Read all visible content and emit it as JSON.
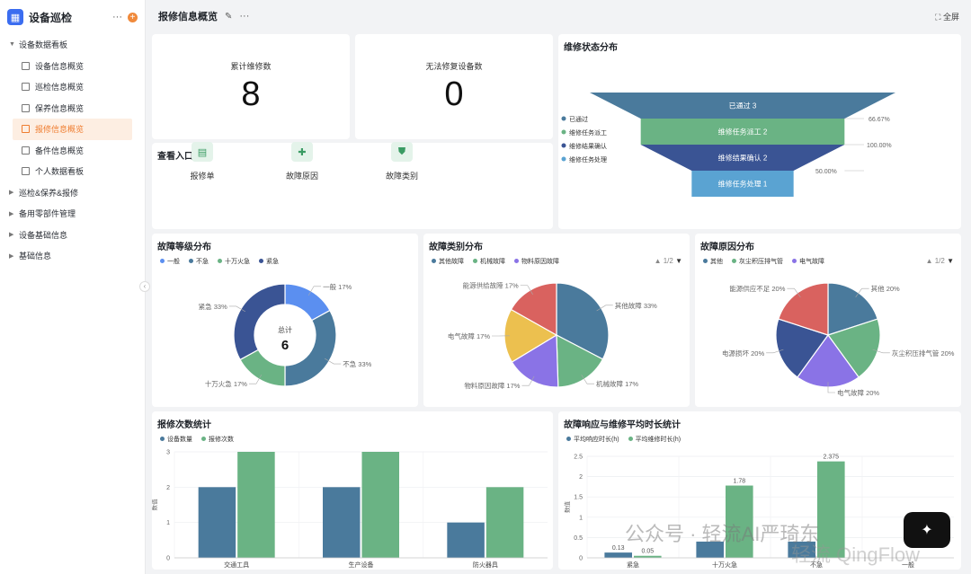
{
  "app": {
    "name": "设备巡检",
    "logo_icon": "app-logo-icon"
  },
  "sidebar": {
    "items": [
      {
        "label": "设备数据看板",
        "level": 0,
        "expanded": true
      },
      {
        "label": "设备信息概览",
        "level": 1
      },
      {
        "label": "巡检信息概览",
        "level": 1
      },
      {
        "label": "保养信息概览",
        "level": 1
      },
      {
        "label": "报修信息概览",
        "level": 1,
        "active": true
      },
      {
        "label": "备件信息概览",
        "level": 1
      },
      {
        "label": "个人数据看板",
        "level": 1
      },
      {
        "label": "巡检&保养&报修",
        "level": 0
      },
      {
        "label": "备用零部件管理",
        "level": 0
      },
      {
        "label": "设备基础信息",
        "level": 0
      },
      {
        "label": "基础信息",
        "level": 0
      }
    ]
  },
  "header": {
    "title": "报修信息概览",
    "fullscreen_label": "全屏"
  },
  "kpis": [
    {
      "label": "累计维修数",
      "value": "8"
    },
    {
      "label": "无法修复设备数",
      "value": "0"
    }
  ],
  "entries": {
    "title": "查看入口",
    "items": [
      {
        "label": "报修单",
        "icon": "form-icon"
      },
      {
        "label": "故障原因",
        "icon": "puzzle-icon"
      },
      {
        "label": "故障类别",
        "icon": "shield-icon"
      }
    ]
  },
  "colors": {
    "blue_light": "#5b8ff0",
    "blue_steel": "#4a7a9c",
    "green": "#6ab384",
    "navy": "#3a5494",
    "red": "#d9625f",
    "yellow": "#ecc04f",
    "purple": "#8a73e6",
    "sky": "#5aa3d2"
  },
  "chart_data": [
    {
      "type": "funnel",
      "title": "维修状态分布",
      "legend": [
        "已通过",
        "维修任务派工",
        "维修结果确认",
        "维修任务处理"
      ],
      "stages": [
        {
          "name": "已通过",
          "value": 3,
          "label": "已通过 3",
          "rate": "66.67%"
        },
        {
          "name": "维修任务派工",
          "value": 2,
          "label": "维修任务派工 2",
          "rate": "100.00%"
        },
        {
          "name": "维修结果确认",
          "value": 2,
          "label": "维修结果确认 2",
          "rate": "50.00%"
        },
        {
          "name": "维修任务处理",
          "value": 1,
          "label": "维修任务处理 1"
        }
      ]
    },
    {
      "type": "pie",
      "title": "故障等级分布",
      "legend": [
        "一般",
        "不急",
        "十万火急",
        "紧急"
      ],
      "center_label": "总计",
      "center_value": "6",
      "slices": [
        {
          "name": "一般",
          "percent": 17,
          "label": "一般 17%"
        },
        {
          "name": "不急",
          "percent": 33,
          "label": "不急 33%"
        },
        {
          "name": "十万火急",
          "percent": 17,
          "label": "十万火急 17%"
        },
        {
          "name": "紧急",
          "percent": 33,
          "label": "紧急 33%"
        }
      ]
    },
    {
      "type": "pie",
      "title": "故障类别分布",
      "legend": [
        "其他故障",
        "机械故障",
        "物料原因故障"
      ],
      "pager": "1/2",
      "slices": [
        {
          "name": "其他故障",
          "percent": 33,
          "label": "其他故障 33%"
        },
        {
          "name": "机械故障",
          "percent": 17,
          "label": "机械故障 17%"
        },
        {
          "name": "物料原因故障",
          "percent": 17,
          "label": "物料原因故障 17%"
        },
        {
          "name": "电气故障",
          "percent": 17,
          "label": "电气故障 17%"
        },
        {
          "name": "能源供给故障",
          "percent": 17,
          "label": "能源供给故障 17%"
        }
      ]
    },
    {
      "type": "pie",
      "title": "故障原因分布",
      "legend": [
        "其他",
        "灰尘积压排气管",
        "电气故障"
      ],
      "pager": "1/2",
      "slices": [
        {
          "name": "其他",
          "percent": 20,
          "label": "其他 20%"
        },
        {
          "name": "灰尘积压排气管",
          "percent": 20,
          "label": "灰尘积压排气管 20%"
        },
        {
          "name": "电气故障",
          "percent": 20,
          "label": "电气故障 20%"
        },
        {
          "name": "电源损坏",
          "percent": 20,
          "label": "电源损坏 20%"
        },
        {
          "name": "能源供应不足",
          "percent": 20,
          "label": "能源供应不足 20%"
        }
      ]
    },
    {
      "type": "bar",
      "title": "报修次数统计",
      "ylabel": "数值",
      "ylim": [
        0,
        3
      ],
      "yticks": [
        0,
        1,
        2,
        3
      ],
      "categories": [
        "交通工具",
        "生产设备",
        "防火器具"
      ],
      "series": [
        {
          "name": "设备数量",
          "values": [
            2,
            2,
            1
          ]
        },
        {
          "name": "报修次数",
          "values": [
            3,
            3,
            2
          ]
        }
      ]
    },
    {
      "type": "bar",
      "title": "故障响应与维修平均时长统计",
      "ylabel": "数值",
      "ylim": [
        0,
        2.5
      ],
      "yticks": [
        "0",
        "0.5",
        "1",
        "1.5",
        "2",
        "2.5"
      ],
      "categories": [
        "紧急",
        "十万火急",
        "不急",
        "一般"
      ],
      "series": [
        {
          "name": "平均响应时长(h)",
          "values": [
            0.13,
            0.4,
            0.4,
            null
          ],
          "labels": [
            "0.13",
            "",
            "",
            ""
          ]
        },
        {
          "name": "平均维修时长(h)",
          "values": [
            0.05,
            1.78,
            2.375,
            null
          ],
          "labels": [
            "0.05",
            "1.78",
            "2.375",
            ""
          ]
        }
      ]
    }
  ],
  "watermark": {
    "line1": "公众号 · 轻流AI严琦东",
    "line2": "轻流 QingFlow"
  }
}
